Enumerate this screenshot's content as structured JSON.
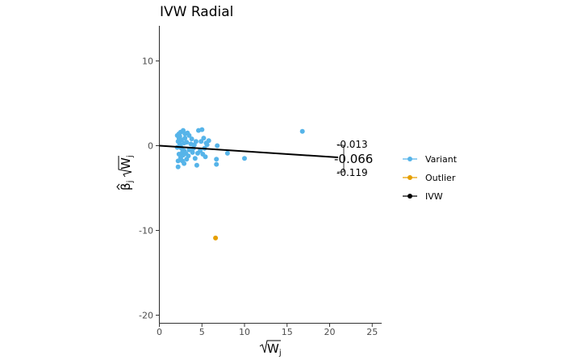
{
  "chart_data": {
    "type": "scatter",
    "title": "IVW Radial",
    "xlabel_base": "W",
    "xlabel_sub": "j",
    "ylabel_beta": "β",
    "ylabel_sub": "j",
    "ylabel_w": "W",
    "ylabel_w_sub": "j",
    "xlim": [
      0,
      26
    ],
    "ylim": [
      -21,
      14
    ],
    "x_ticks": [
      0,
      5,
      10,
      15,
      20,
      25
    ],
    "y_ticks": [
      -20,
      -10,
      0,
      10
    ],
    "grid": false,
    "legend_position": "right",
    "legend": [
      {
        "label": "Variant",
        "color": "#56B4E9"
      },
      {
        "label": "Outlier",
        "color": "#E69F00"
      },
      {
        "label": "IVW",
        "color": "#000000"
      }
    ],
    "ivw_slope": -0.066,
    "ivw_label": "-0.066",
    "ci_upper_label": "-0.013",
    "ci_lower_label": "-0.119",
    "series": [
      {
        "name": "Variant",
        "color": "#56B4E9",
        "points": [
          [
            2.1,
            1.2
          ],
          [
            2.3,
            0.9
          ],
          [
            2.5,
            1.6
          ],
          [
            2.8,
            1.8
          ],
          [
            3.0,
            1.4
          ],
          [
            2.2,
            0.5
          ],
          [
            2.4,
            0.2
          ],
          [
            2.6,
            -0.3
          ],
          [
            2.9,
            -0.6
          ],
          [
            3.2,
            0.4
          ],
          [
            3.5,
            1.2
          ],
          [
            3.8,
            0.8
          ],
          [
            4.1,
            0.1
          ],
          [
            2.3,
            -1.0
          ],
          [
            2.5,
            -1.4
          ],
          [
            2.7,
            -1.8
          ],
          [
            2.9,
            -2.1
          ],
          [
            2.2,
            -2.5
          ],
          [
            3.1,
            -0.9
          ],
          [
            3.4,
            -1.2
          ],
          [
            3.6,
            -0.4
          ],
          [
            3.9,
            -0.8
          ],
          [
            4.2,
            -1.5
          ],
          [
            4.4,
            -2.3
          ],
          [
            4.6,
            1.8
          ],
          [
            5.0,
            1.9
          ],
          [
            5.2,
            0.9
          ],
          [
            5.5,
            0.3
          ],
          [
            5.8,
            0.6
          ],
          [
            5.1,
            -1.0
          ],
          [
            5.4,
            -1.3
          ],
          [
            6.7,
            -1.6
          ],
          [
            6.7,
            -2.2
          ],
          [
            6.8,
            0.0
          ],
          [
            8.0,
            -0.9
          ],
          [
            10.0,
            -1.5
          ],
          [
            16.8,
            1.7
          ],
          [
            2.1,
            -0.2
          ],
          [
            2.4,
            1.1
          ],
          [
            2.6,
            0.7
          ],
          [
            2.8,
            -1.1
          ],
          [
            3.0,
            0.9
          ],
          [
            3.3,
            1.5
          ],
          [
            3.7,
            0.2
          ],
          [
            4.0,
            -0.3
          ],
          [
            4.3,
            0.5
          ],
          [
            4.8,
            -0.6
          ],
          [
            2.2,
            -1.8
          ],
          [
            2.7,
            -0.8
          ],
          [
            3.2,
            -1.6
          ],
          [
            4.9,
            0.5
          ],
          [
            5.6,
            0.1
          ],
          [
            2.3,
            1.4
          ],
          [
            2.5,
            -0.1
          ],
          [
            2.9,
            0.3
          ],
          [
            3.5,
            -0.5
          ],
          [
            4.5,
            -0.9
          ],
          [
            5.3,
            -0.3
          ]
        ]
      },
      {
        "name": "Outlier",
        "color": "#E69F00",
        "points": [
          [
            6.6,
            -10.9
          ]
        ]
      }
    ]
  }
}
